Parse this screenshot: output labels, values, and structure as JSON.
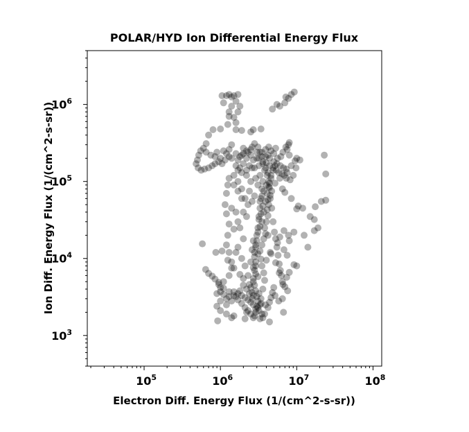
{
  "chart_data": {
    "type": "scatter",
    "title": "POLAR/HYD  Ion Differential Energy Flux",
    "xlabel": "Electron Diff. Energy Flux (1/(cm^2-s-sr))",
    "ylabel": "Ion Diff. Energy Flux (1/(cm^2-s-sr))",
    "x_scale": "log",
    "y_scale": "log",
    "xlim": [
      18000,
      130000000
    ],
    "ylim": [
      400,
      5000000
    ],
    "x_ticks": [
      {
        "value": 100000,
        "base": "10",
        "exp": "5"
      },
      {
        "value": 1000000,
        "base": "10",
        "exp": "6"
      },
      {
        "value": 10000000,
        "base": "10",
        "exp": "7"
      },
      {
        "value": 100000000,
        "base": "10",
        "exp": "8"
      }
    ],
    "y_ticks": [
      {
        "value": 1000,
        "base": "10",
        "exp": "3"
      },
      {
        "value": 10000,
        "base": "10",
        "exp": "4"
      },
      {
        "value": 100000,
        "base": "10",
        "exp": "5"
      },
      {
        "value": 1000000,
        "base": "10",
        "exp": "6"
      }
    ],
    "grid": false,
    "marker_color": "#000000",
    "marker_alpha": 0.3,
    "points": [
      [
        2200000,
        250000
      ],
      [
        2500000,
        220000
      ],
      [
        3000000,
        200000
      ],
      [
        3600000,
        180000
      ],
      [
        3900000,
        150000
      ],
      [
        4200000,
        130000
      ],
      [
        4600000,
        110000
      ],
      [
        3800000,
        140000
      ],
      [
        3600000,
        100000
      ],
      [
        3500000,
        80000
      ],
      [
        3400000,
        60000
      ],
      [
        3300000,
        45000
      ],
      [
        3200000,
        35000
      ],
      [
        3100000,
        25000
      ],
      [
        3000000,
        20000
      ],
      [
        2900000,
        15000
      ],
      [
        2800000,
        12000
      ],
      [
        2900000,
        9000
      ],
      [
        2800000,
        7000
      ],
      [
        2700000,
        5500
      ],
      [
        2800000,
        4500
      ],
      [
        2900000,
        3800
      ],
      [
        3000000,
        3200
      ],
      [
        3100000,
        2800
      ],
      [
        3000000,
        2400
      ],
      [
        2900000,
        2000
      ],
      [
        2800000,
        1800
      ],
      [
        3200000,
        2100
      ],
      [
        3400000,
        2600
      ],
      [
        2600000,
        3000
      ],
      [
        2400000,
        3500
      ],
      [
        2200000,
        4000
      ],
      [
        2000000,
        4500
      ],
      [
        1800000,
        3800
      ],
      [
        1600000,
        3200
      ],
      [
        1400000,
        2800
      ],
      [
        1200000,
        2500
      ],
      [
        1000000,
        2800
      ],
      [
        900000,
        3500
      ],
      [
        1000000,
        4200
      ],
      [
        1100000,
        5000
      ],
      [
        1300000,
        6000
      ],
      [
        1500000,
        7500
      ],
      [
        1400000,
        9000
      ],
      [
        1300000,
        12000
      ],
      [
        1200000,
        15000
      ],
      [
        1250000,
        20000
      ],
      [
        1300000,
        28000
      ],
      [
        1200000,
        38000
      ],
      [
        1150000,
        50000
      ],
      [
        1200000,
        70000
      ],
      [
        1250000,
        90000
      ],
      [
        1300000,
        110000
      ],
      [
        1500000,
        120000
      ],
      [
        1700000,
        100000
      ],
      [
        1900000,
        80000
      ],
      [
        2100000,
        60000
      ],
      [
        2300000,
        50000
      ],
      [
        1600000,
        40000
      ],
      [
        1800000,
        25000
      ],
      [
        2000000,
        18000
      ],
      [
        1700000,
        14000
      ],
      [
        1900000,
        10000
      ],
      [
        2100000,
        8000
      ],
      [
        2300000,
        6000
      ],
      [
        2500000,
        9000
      ],
      [
        2600000,
        13000
      ],
      [
        2700000,
        17000
      ],
      [
        3500000,
        30000
      ],
      [
        3700000,
        40000
      ],
      [
        3900000,
        55000
      ],
      [
        4100000,
        70000
      ],
      [
        4300000,
        85000
      ],
      [
        4500000,
        60000
      ],
      [
        4700000,
        45000
      ],
      [
        4900000,
        30000
      ],
      [
        5100000,
        22000
      ],
      [
        5300000,
        18000
      ],
      [
        5500000,
        14000
      ],
      [
        5700000,
        11000
      ],
      [
        5900000,
        8500
      ],
      [
        6100000,
        7000
      ],
      [
        6300000,
        6000
      ],
      [
        6500000,
        5000
      ],
      [
        5000000,
        4200
      ],
      [
        4800000,
        3600
      ],
      [
        4600000,
        3100
      ],
      [
        4400000,
        2700
      ],
      [
        4200000,
        2300
      ],
      [
        3800000,
        1900
      ],
      [
        3600000,
        1700
      ],
      [
        3300000,
        1650
      ],
      [
        2700000,
        1700
      ],
      [
        2500000,
        1900
      ],
      [
        2300000,
        2100
      ],
      [
        2100000,
        2300
      ],
      [
        1900000,
        2600
      ],
      [
        1700000,
        2900
      ],
      [
        1500000,
        3300
      ],
      [
        1300000,
        3700
      ],
      [
        1100000,
        4100
      ],
      [
        950000,
        4600
      ],
      [
        900000,
        2400
      ],
      [
        1000000,
        2100
      ],
      [
        1200000,
        1900
      ],
      [
        1400000,
        1700
      ],
      [
        920000,
        1550
      ],
      [
        1500000,
        1800
      ],
      [
        2100000,
        1650
      ],
      [
        6700000,
        2000
      ],
      [
        7600000,
        3800
      ],
      [
        6600000,
        4600
      ],
      [
        7400000,
        5700
      ],
      [
        8000000,
        6600
      ],
      [
        9200000,
        8300
      ],
      [
        5200000,
        3300
      ],
      [
        5800000,
        2800
      ],
      [
        4000000,
        9500
      ],
      [
        4500000,
        12000
      ],
      [
        5600000,
        16000
      ],
      [
        6000000,
        19000
      ],
      [
        6800000,
        23000
      ],
      [
        7800000,
        20000
      ],
      [
        9200000,
        22000
      ],
      [
        12500000,
        20000
      ],
      [
        14000000,
        14000
      ],
      [
        17000000,
        23000
      ],
      [
        19000000,
        25000
      ],
      [
        17000000,
        32000
      ],
      [
        15000000,
        35000
      ],
      [
        17500000,
        47000
      ],
      [
        21000000,
        55000
      ],
      [
        10000000,
        44000
      ],
      [
        10500000,
        48000
      ],
      [
        8500000,
        60000
      ],
      [
        7000000,
        72000
      ],
      [
        6500000,
        80000
      ],
      [
        5200000,
        95000
      ],
      [
        6000000,
        110000
      ],
      [
        7500000,
        130000
      ],
      [
        8500000,
        160000
      ],
      [
        9500000,
        185000
      ],
      [
        10000000,
        200000
      ],
      [
        8000000,
        220000
      ],
      [
        7500000,
        260000
      ],
      [
        7800000,
        300000
      ],
      [
        8000000,
        320000
      ],
      [
        7200000,
        280000
      ],
      [
        6600000,
        240000
      ],
      [
        6200000,
        210000
      ],
      [
        5600000,
        200000
      ],
      [
        5000000,
        230000
      ],
      [
        4600000,
        250000
      ],
      [
        4200000,
        220000
      ],
      [
        3300000,
        240000
      ],
      [
        2600000,
        280000
      ],
      [
        2300000,
        240000
      ],
      [
        1900000,
        220000
      ],
      [
        1600000,
        230000
      ],
      [
        1300000,
        260000
      ],
      [
        1100000,
        250000
      ],
      [
        900000,
        240000
      ],
      [
        750000,
        220000
      ],
      [
        650000,
        240000
      ],
      [
        600000,
        270000
      ],
      [
        550000,
        250000
      ],
      [
        520000,
        220000
      ],
      [
        500000,
        190000
      ],
      [
        480000,
        170000
      ],
      [
        510000,
        150000
      ],
      [
        560000,
        140000
      ],
      [
        620000,
        145000
      ],
      [
        700000,
        150000
      ],
      [
        780000,
        160000
      ],
      [
        850000,
        170000
      ],
      [
        950000,
        180000
      ],
      [
        1050000,
        170000
      ],
      [
        1150000,
        190000
      ],
      [
        1400000,
        200000
      ],
      [
        1700000,
        190000
      ],
      [
        2000000,
        170000
      ],
      [
        2400000,
        160000
      ],
      [
        2800000,
        150000
      ],
      [
        3200000,
        160000
      ],
      [
        3600000,
        170000
      ],
      [
        4000000,
        175000
      ],
      [
        4400000,
        160000
      ],
      [
        4900000,
        150000
      ],
      [
        5400000,
        140000
      ],
      [
        5800000,
        130000
      ],
      [
        6400000,
        125000
      ],
      [
        6900000,
        120000
      ],
      [
        7300000,
        110000
      ],
      [
        8200000,
        105000
      ],
      [
        9000000,
        120000
      ],
      [
        9800000,
        150000
      ],
      [
        11000000,
        190000
      ],
      [
        23000000,
        220000
      ],
      [
        24000000,
        125000
      ],
      [
        24000000,
        57000
      ],
      [
        12000000,
        45000
      ],
      [
        5500000,
        1000000
      ],
      [
        6000000,
        950000
      ],
      [
        7200000,
        1250000
      ],
      [
        7800000,
        1200000
      ],
      [
        8500000,
        1350000
      ],
      [
        9300000,
        1450000
      ],
      [
        7000000,
        1050000
      ],
      [
        4800000,
        870000
      ],
      [
        3400000,
        480000
      ],
      [
        2700000,
        470000
      ],
      [
        2500000,
        440000
      ],
      [
        1900000,
        460000
      ],
      [
        1600000,
        470000
      ],
      [
        1300000,
        800000
      ],
      [
        1200000,
        1300000
      ],
      [
        1300000,
        1350000
      ],
      [
        1400000,
        1250000
      ],
      [
        1500000,
        1300000
      ],
      [
        1700000,
        1350000
      ],
      [
        1600000,
        1100000
      ],
      [
        1400000,
        950000
      ],
      [
        1300000,
        700000
      ],
      [
        1250000,
        550000
      ],
      [
        1000000,
        480000
      ],
      [
        800000,
        470000
      ],
      [
        700000,
        400000
      ],
      [
        650000,
        310000
      ],
      [
        1500000,
        680000
      ],
      [
        1600000,
        580000
      ],
      [
        1700000,
        800000
      ],
      [
        1800000,
        950000
      ],
      [
        1100000,
        1050000
      ],
      [
        1050000,
        1300000
      ],
      [
        580000,
        15500
      ],
      [
        640000,
        7200
      ],
      [
        780000,
        5900
      ],
      [
        850000,
        5400
      ],
      [
        950000,
        4900
      ],
      [
        700000,
        6400
      ],
      [
        870000,
        12000
      ],
      [
        1050000,
        12500
      ],
      [
        1250000,
        9500
      ],
      [
        1400000,
        7500
      ],
      [
        4200000,
        20000
      ],
      [
        4600000,
        11500
      ],
      [
        5300000,
        8800
      ],
      [
        5900000,
        6500
      ],
      [
        6800000,
        13000
      ],
      [
        7500000,
        11000
      ],
      [
        10000000,
        8000
      ],
      [
        8000000,
        17000
      ],
      [
        7000000,
        4300
      ],
      [
        6500000,
        3000
      ],
      [
        3500000,
        1900
      ],
      [
        2200000,
        2000
      ],
      [
        3900000,
        2500
      ],
      [
        4400000,
        1500
      ],
      [
        2400000,
        4600
      ],
      [
        2000000,
        5500
      ],
      [
        1800000,
        6200
      ],
      [
        1600000,
        12000
      ],
      [
        1500000,
        24000
      ],
      [
        1700000,
        30000
      ],
      [
        1400000,
        45000
      ],
      [
        2000000,
        40000
      ],
      [
        2200000,
        35000
      ],
      [
        1900000,
        60000
      ],
      [
        1700000,
        75000
      ],
      [
        1500000,
        90000
      ],
      [
        2600000,
        55000
      ],
      [
        2400000,
        75000
      ],
      [
        2800000,
        65000
      ],
      [
        3100000,
        90000
      ],
      [
        3300000,
        120000
      ],
      [
        2900000,
        110000
      ],
      [
        2500000,
        100000
      ],
      [
        2200000,
        120000
      ],
      [
        1900000,
        130000
      ],
      [
        1700000,
        140000
      ],
      [
        1600000,
        160000
      ],
      [
        3900000,
        260000
      ],
      [
        4300000,
        280000
      ],
      [
        5300000,
        270000
      ],
      [
        3100000,
        280000
      ],
      [
        2800000,
        310000
      ],
      [
        2000000,
        270000
      ],
      [
        1400000,
        300000
      ],
      [
        1200000,
        230000
      ],
      [
        850000,
        210000
      ],
      [
        1000000,
        200000
      ],
      [
        1300000,
        210000
      ],
      [
        1800000,
        210000
      ],
      [
        2200000,
        200000
      ],
      [
        2700000,
        190000
      ],
      [
        3200000,
        200000
      ],
      [
        3500000,
        210000
      ],
      [
        3900000,
        210000
      ],
      [
        4400000,
        200000
      ],
      [
        5000000,
        180000
      ],
      [
        5500000,
        170000
      ],
      [
        6100000,
        160000
      ],
      [
        6700000,
        150000
      ],
      [
        7300000,
        145000
      ],
      [
        4100000,
        120000
      ],
      [
        4400000,
        95000
      ],
      [
        4000000,
        90000
      ],
      [
        3700000,
        75000
      ],
      [
        3500000,
        65000
      ],
      [
        3300000,
        55000
      ],
      [
        3600000,
        48000
      ],
      [
        3400000,
        38000
      ],
      [
        3200000,
        32000
      ],
      [
        3300000,
        26000
      ],
      [
        3100000,
        22000
      ],
      [
        3000000,
        17000
      ],
      [
        2900000,
        14000
      ],
      [
        3100000,
        11500
      ],
      [
        2800000,
        10500
      ],
      [
        2900000,
        8000
      ],
      [
        2700000,
        7600
      ],
      [
        2900000,
        6300
      ],
      [
        3100000,
        5800
      ],
      [
        2700000,
        5000
      ],
      [
        2500000,
        4200
      ],
      [
        2600000,
        3600
      ],
      [
        2700000,
        3300
      ],
      [
        3200000,
        3500
      ],
      [
        3400000,
        3000
      ],
      [
        3300000,
        2500
      ],
      [
        3100000,
        2300
      ],
      [
        2900000,
        2200
      ],
      [
        2700000,
        2500
      ],
      [
        2500000,
        2700
      ],
      [
        2300000,
        2900
      ],
      [
        2100000,
        3100
      ],
      [
        1900000,
        3300
      ],
      [
        1700000,
        3500
      ],
      [
        1500000,
        3700
      ],
      [
        1300000,
        3200
      ],
      [
        1200000,
        3000
      ],
      [
        1100000,
        3400
      ],
      [
        1000000,
        3700
      ],
      [
        3600000,
        4000
      ],
      [
        3800000,
        5200
      ],
      [
        3700000,
        6500
      ],
      [
        3500000,
        8000
      ],
      [
        3400000,
        9800
      ],
      [
        3300000,
        12500
      ],
      [
        3500000,
        15000
      ],
      [
        3700000,
        18000
      ],
      [
        3900000,
        21000
      ],
      [
        3800000,
        25000
      ],
      [
        4000000,
        30000
      ],
      [
        4200000,
        36000
      ],
      [
        4100000,
        43000
      ],
      [
        4300000,
        50000
      ],
      [
        4200000,
        58000
      ],
      [
        4500000,
        66000
      ],
      [
        4700000,
        75000
      ],
      [
        4400000,
        83000
      ],
      [
        4300000,
        100000
      ],
      [
        4600000,
        120000
      ],
      [
        4900000,
        140000
      ],
      [
        5200000,
        160000
      ],
      [
        2600000,
        150000
      ],
      [
        2200000,
        140000
      ],
      [
        1800000,
        150000
      ],
      [
        2000000,
        230000
      ],
      [
        2500000,
        260000
      ],
      [
        3000000,
        240000
      ],
      [
        3500000,
        240000
      ]
    ]
  }
}
